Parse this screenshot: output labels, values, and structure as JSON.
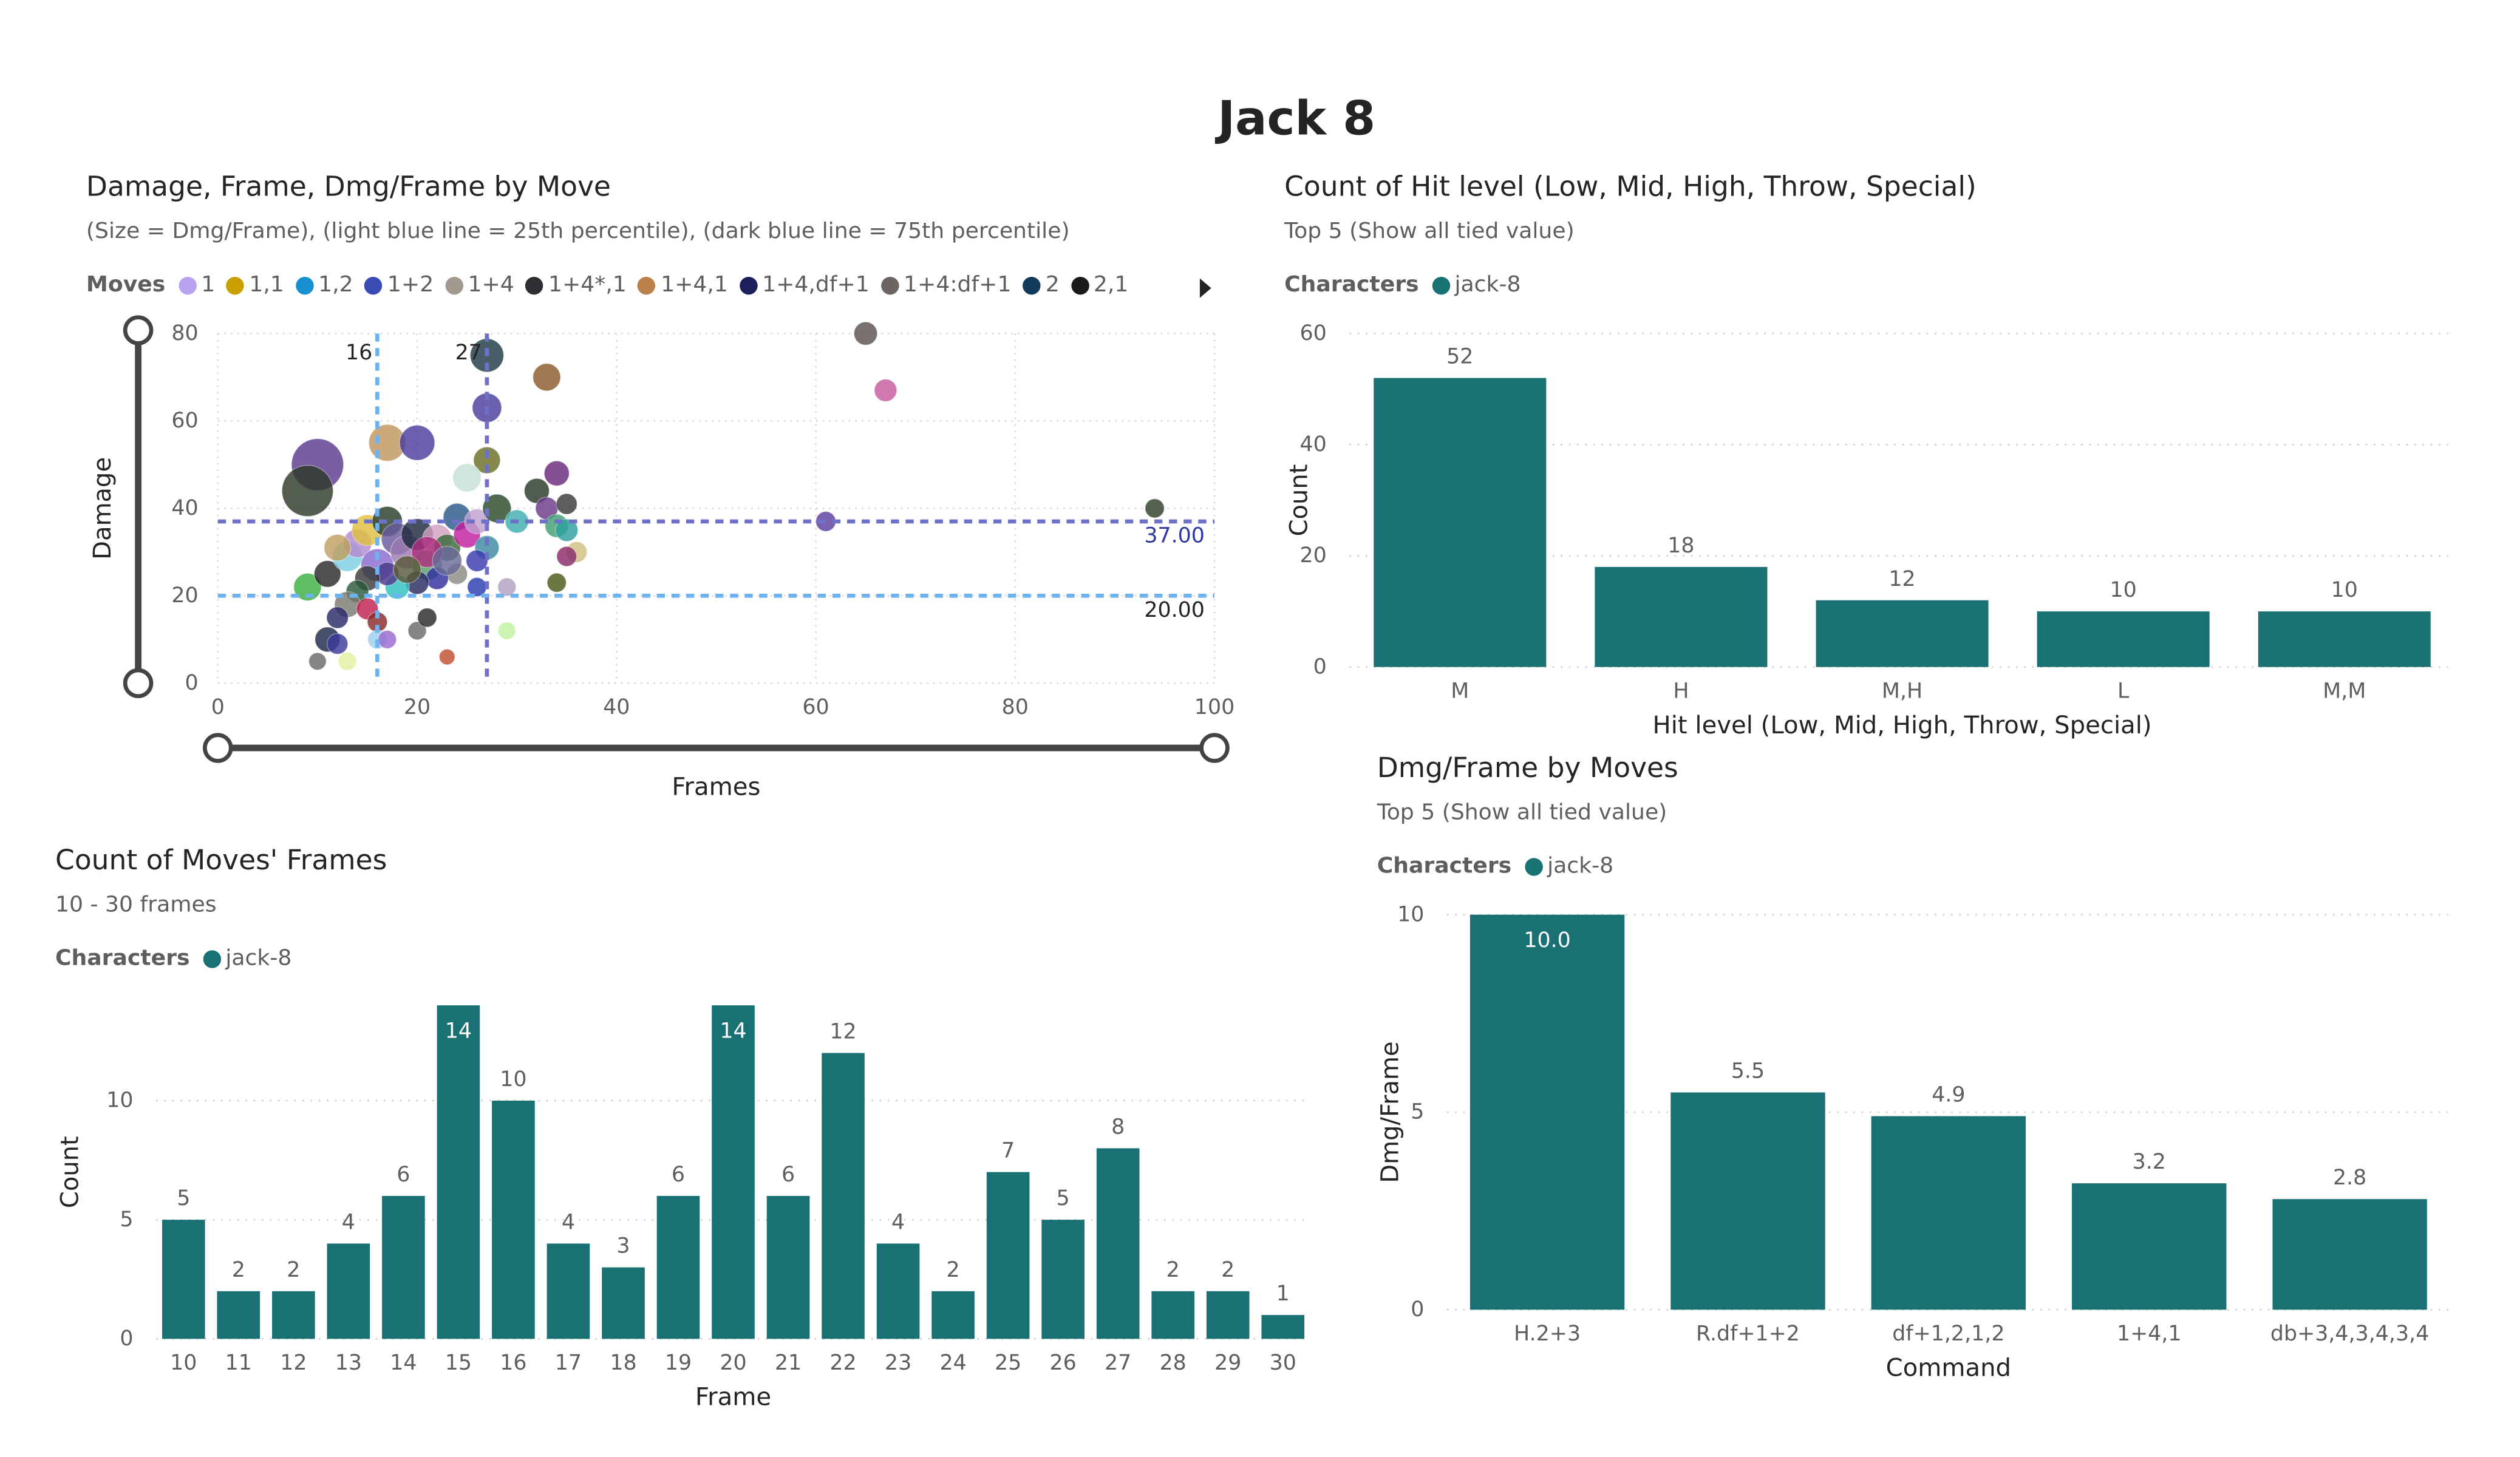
{
  "page": {
    "title": "Jack 8"
  },
  "scatter": {
    "title": "Damage, Frame, Dmg/Frame by Move",
    "subtitle": "(Size = Dmg/Frame), (light blue line = 25th percentile), (dark blue line = 75th percentile)",
    "legend_title": "Moves",
    "legend": [
      {
        "label": "1",
        "color": "#b9a3f0"
      },
      {
        "label": "1,1",
        "color": "#c9a000"
      },
      {
        "label": "1,2",
        "color": "#1690d0"
      },
      {
        "label": "1+2",
        "color": "#3b4bb5"
      },
      {
        "label": "1+4",
        "color": "#a39a8f"
      },
      {
        "label": "1+4*,1",
        "color": "#2d2f33"
      },
      {
        "label": "1+4,1",
        "color": "#b9824a"
      },
      {
        "label": "1+4,df+1",
        "color": "#1c1f5a"
      },
      {
        "label": "1+4:df+1",
        "color": "#6d6562"
      },
      {
        "label": "2",
        "color": "#123a5a"
      },
      {
        "label": "2,1",
        "color": "#1b1b1b"
      }
    ],
    "legend_more_icon": "caret-right-icon",
    "slider_icon": "range-slider-handle",
    "chart_data": {
      "type": "scatter",
      "xlabel": "Frames",
      "ylabel": "Damage",
      "xlim": [
        0,
        100
      ],
      "ylim": [
        0,
        80
      ],
      "xticks": [
        "0",
        "20",
        "40",
        "60",
        "80",
        "100"
      ],
      "yticks": [
        "0",
        "20",
        "40",
        "60",
        "80"
      ],
      "reference_lines": [
        {
          "axis": "x",
          "value": 16,
          "label": "16",
          "color": "#6fb2f0"
        },
        {
          "axis": "x",
          "value": 27,
          "label": "27",
          "color": "#6d72c8"
        },
        {
          "axis": "y",
          "value": 20,
          "label": "20.00",
          "color": "#6fb2f0"
        },
        {
          "axis": "y",
          "value": 37,
          "label": "37.00",
          "color": "#6d72c8"
        }
      ],
      "points": [
        {
          "x": 10,
          "y": 50,
          "s": 5.0,
          "c": "#5b3a8f"
        },
        {
          "x": 9,
          "y": 44,
          "s": 4.9,
          "c": "#2d3a2a"
        },
        {
          "x": 17,
          "y": 55,
          "s": 3.2,
          "c": "#c0965e"
        },
        {
          "x": 20,
          "y": 55,
          "s": 3.0,
          "c": "#4b3c9c"
        },
        {
          "x": 27,
          "y": 75,
          "s": 2.8,
          "c": "#1f3b47"
        },
        {
          "x": 33,
          "y": 70,
          "s": 2.1,
          "c": "#8a5a2b"
        },
        {
          "x": 27,
          "y": 63,
          "s": 2.3,
          "c": "#4a3d9c"
        },
        {
          "x": 27,
          "y": 51,
          "s": 2.0,
          "c": "#6a6f24"
        },
        {
          "x": 25,
          "y": 47,
          "s": 2.2,
          "c": "#c5e0d5"
        },
        {
          "x": 34,
          "y": 48,
          "s": 1.8,
          "c": "#6a2a7a"
        },
        {
          "x": 65,
          "y": 80,
          "s": 1.6,
          "c": "#5a524e"
        },
        {
          "x": 67,
          "y": 67,
          "s": 1.5,
          "c": "#c75a9f"
        },
        {
          "x": 94,
          "y": 40,
          "s": 1.1,
          "c": "#2f3f2a"
        },
        {
          "x": 61,
          "y": 37,
          "s": 1.2,
          "c": "#5b3ea0"
        },
        {
          "x": 9,
          "y": 22,
          "s": 2.1,
          "c": "#3cb040"
        },
        {
          "x": 11,
          "y": 25,
          "s": 2.0,
          "c": "#2a2a2a"
        },
        {
          "x": 13,
          "y": 29,
          "s": 2.4,
          "c": "#7ad0e0"
        },
        {
          "x": 14,
          "y": 32,
          "s": 2.2,
          "c": "#b38ad0"
        },
        {
          "x": 15,
          "y": 35,
          "s": 2.5,
          "c": "#e0c040"
        },
        {
          "x": 16,
          "y": 27,
          "s": 2.7,
          "c": "#8a6ad0"
        },
        {
          "x": 17,
          "y": 37,
          "s": 2.4,
          "c": "#2a3d2a"
        },
        {
          "x": 18,
          "y": 33,
          "s": 2.6,
          "c": "#6a5a9c"
        },
        {
          "x": 19,
          "y": 30,
          "s": 2.8,
          "c": "#9c7ab0"
        },
        {
          "x": 20,
          "y": 34,
          "s": 2.6,
          "c": "#1f2a40"
        },
        {
          "x": 21,
          "y": 27,
          "s": 2.4,
          "c": "#5a9a6a"
        },
        {
          "x": 22,
          "y": 33,
          "s": 2.3,
          "c": "#d0a0c0"
        },
        {
          "x": 23,
          "y": 31,
          "s": 2.0,
          "c": "#3a6a3a"
        },
        {
          "x": 24,
          "y": 38,
          "s": 2.1,
          "c": "#2a5a8a"
        },
        {
          "x": 25,
          "y": 34,
          "s": 2.0,
          "c": "#c020a0"
        },
        {
          "x": 26,
          "y": 37,
          "s": 1.8,
          "c": "#c0a0d0"
        },
        {
          "x": 27,
          "y": 31,
          "s": 1.7,
          "c": "#3a8aa0"
        },
        {
          "x": 28,
          "y": 40,
          "s": 2.2,
          "c": "#2a4a2a"
        },
        {
          "x": 30,
          "y": 37,
          "s": 1.6,
          "c": "#40b0b0"
        },
        {
          "x": 32,
          "y": 44,
          "s": 1.8,
          "c": "#2a3a2a"
        },
        {
          "x": 33,
          "y": 40,
          "s": 1.5,
          "c": "#6a3a8a"
        },
        {
          "x": 34,
          "y": 36,
          "s": 1.6,
          "c": "#40a070"
        },
        {
          "x": 35,
          "y": 35,
          "s": 1.5,
          "c": "#30a0a0"
        },
        {
          "x": 35,
          "y": 41,
          "s": 1.3,
          "c": "#3a3a3a"
        },
        {
          "x": 36,
          "y": 30,
          "s": 1.3,
          "c": "#d0c080"
        },
        {
          "x": 35,
          "y": 29,
          "s": 1.2,
          "c": "#8a2a6a"
        },
        {
          "x": 34,
          "y": 23,
          "s": 1.1,
          "c": "#4a5a1a"
        },
        {
          "x": 29,
          "y": 22,
          "s": 1.0,
          "c": "#b0a0c0"
        },
        {
          "x": 29,
          "y": 12,
          "s": 0.9,
          "c": "#c0f0a0"
        },
        {
          "x": 26,
          "y": 28,
          "s": 1.4,
          "c": "#3a3ab0"
        },
        {
          "x": 26,
          "y": 22,
          "s": 1.1,
          "c": "#2a3ab0"
        },
        {
          "x": 24,
          "y": 25,
          "s": 1.3,
          "c": "#8a8a80"
        },
        {
          "x": 22,
          "y": 24,
          "s": 1.5,
          "c": "#3030a0"
        },
        {
          "x": 20,
          "y": 23,
          "s": 1.6,
          "c": "#2a2a60"
        },
        {
          "x": 18,
          "y": 22,
          "s": 1.7,
          "c": "#30c0c0"
        },
        {
          "x": 17,
          "y": 25,
          "s": 1.6,
          "c": "#4a3a8a"
        },
        {
          "x": 15,
          "y": 24,
          "s": 1.8,
          "c": "#3a3a3a"
        },
        {
          "x": 14,
          "y": 21,
          "s": 1.5,
          "c": "#2a5a3a"
        },
        {
          "x": 13,
          "y": 18,
          "s": 1.9,
          "c": "#7a7a70"
        },
        {
          "x": 15,
          "y": 17,
          "s": 1.4,
          "c": "#c02050"
        },
        {
          "x": 16,
          "y": 14,
          "s": 1.2,
          "c": "#8a2a2a"
        },
        {
          "x": 12,
          "y": 15,
          "s": 1.4,
          "c": "#2a2a6a"
        },
        {
          "x": 11,
          "y": 10,
          "s": 1.8,
          "c": "#1f2a4a"
        },
        {
          "x": 12,
          "y": 9,
          "s": 1.3,
          "c": "#3a3a9a"
        },
        {
          "x": 13,
          "y": 5,
          "s": 1.0,
          "c": "#e0f0a0"
        },
        {
          "x": 10,
          "y": 5,
          "s": 0.9,
          "c": "#6a6a6a"
        },
        {
          "x": 16,
          "y": 10,
          "s": 1.1,
          "c": "#9ad0f0"
        },
        {
          "x": 17,
          "y": 10,
          "s": 1.0,
          "c": "#9a6ad0"
        },
        {
          "x": 20,
          "y": 12,
          "s": 1.0,
          "c": "#6a6a6a"
        },
        {
          "x": 21,
          "y": 15,
          "s": 1.1,
          "c": "#2a2a2a"
        },
        {
          "x": 23,
          "y": 6,
          "s": 0.7,
          "c": "#c05030"
        },
        {
          "x": 21,
          "y": 30,
          "s": 2.5,
          "c": "#b03080"
        },
        {
          "x": 19,
          "y": 26,
          "s": 2.1,
          "c": "#5a5a3a"
        },
        {
          "x": 23,
          "y": 28,
          "s": 2.3,
          "c": "#6a6a9a"
        },
        {
          "x": 12,
          "y": 31,
          "s": 2.0,
          "c": "#c0a060"
        }
      ]
    }
  },
  "hitlevel": {
    "title": "Count of Hit level (Low, Mid, High, Throw, Special)",
    "subtitle": "Top 5 (Show all tied value)",
    "legend_title": "Characters",
    "legend_label": "jack-8",
    "chart_data": {
      "type": "bar",
      "categories": [
        "M",
        "H",
        "M,H",
        "L",
        "M,M"
      ],
      "values": [
        52,
        18,
        12,
        10,
        10
      ],
      "xlabel": "Hit level (Low, Mid, High, Throw, Special)",
      "ylabel": "Count",
      "ylim": [
        0,
        60
      ],
      "yticks": [
        "0",
        "20",
        "40",
        "60"
      ],
      "color": "#1a7174"
    }
  },
  "dmgframe": {
    "title": "Dmg/Frame by Moves",
    "subtitle": "Top 5 (Show all tied value)",
    "legend_title": "Characters",
    "legend_label": "jack-8",
    "chart_data": {
      "type": "bar",
      "categories": [
        "H.2+3",
        "R.df+1+2",
        "df+1,2,1,2",
        "1+4,1",
        "db+3,4,3,4,3,4"
      ],
      "values": [
        10.0,
        5.5,
        4.9,
        3.2,
        2.8
      ],
      "labels": [
        "10.0",
        "5.5",
        "4.9",
        "3.2",
        "2.8"
      ],
      "xlabel": "Command",
      "ylabel": "Dmg/Frame",
      "ylim": [
        0,
        10
      ],
      "yticks": [
        "0",
        "5",
        "10"
      ],
      "color": "#1a7174"
    }
  },
  "frames": {
    "title": "Count of Moves' Frames",
    "subtitle": "10 - 30 frames",
    "legend_title": "Characters",
    "legend_label": "jack-8",
    "chart_data": {
      "type": "bar",
      "categories": [
        "10",
        "11",
        "12",
        "13",
        "14",
        "15",
        "16",
        "17",
        "18",
        "19",
        "20",
        "21",
        "22",
        "23",
        "24",
        "25",
        "26",
        "27",
        "28",
        "29",
        "30"
      ],
      "values": [
        5,
        2,
        2,
        4,
        6,
        14,
        10,
        4,
        3,
        6,
        14,
        6,
        12,
        4,
        2,
        7,
        5,
        8,
        2,
        2,
        1
      ],
      "xlabel": "Frame",
      "ylabel": "Count",
      "ylim": [
        0,
        14
      ],
      "yticks": [
        "0",
        "5",
        "10"
      ],
      "color": "#1a7174"
    }
  }
}
